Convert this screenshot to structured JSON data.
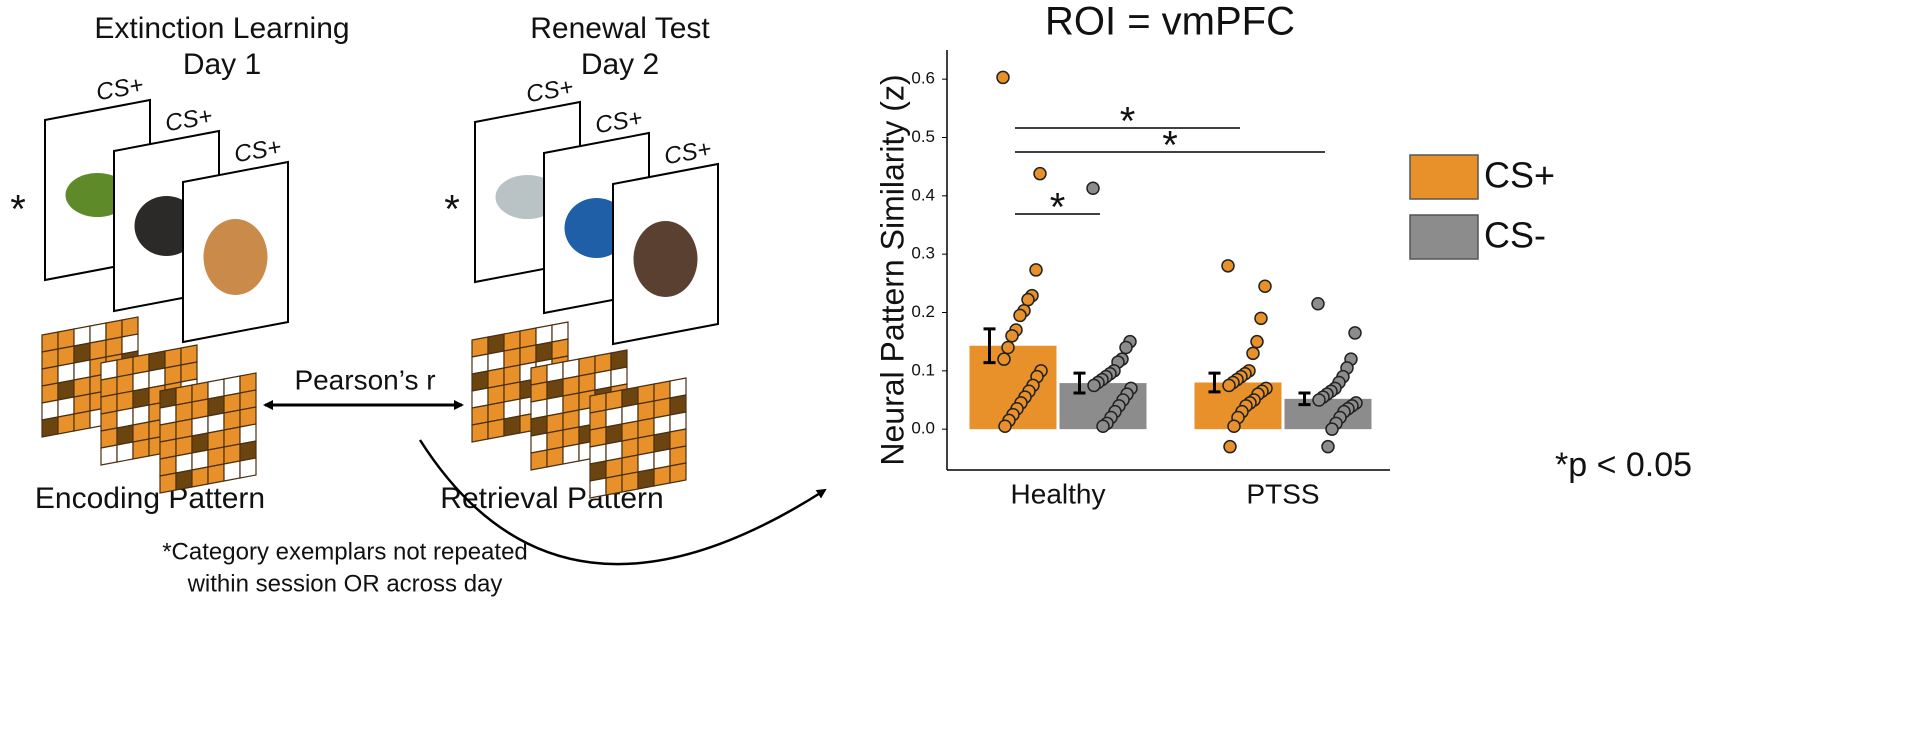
{
  "diagram": {
    "sessions": [
      {
        "title": "Extinction Learning",
        "subtitle": "Day 1",
        "marker": "*",
        "cards": [
          "CS+",
          "CS+",
          "CS+"
        ],
        "pattern_label": "Encoding Pattern"
      },
      {
        "title": "Renewal Test",
        "subtitle": "Day 2",
        "marker": "*",
        "cards": [
          "CS+",
          "CS+",
          "CS+"
        ],
        "pattern_label": "Retrieval Pattern"
      }
    ],
    "link_label": "Pearson’s r",
    "footnote": [
      "*Category exemplars not repeated",
      "within session OR across day"
    ]
  },
  "chart_data": {
    "type": "bar",
    "title": "ROI = vmPFC",
    "y_label": "Neural Pattern Similarity (z)",
    "categories": [
      "Healthy",
      "PTSS"
    ],
    "series": [
      {
        "name": "CS+",
        "color": "#e8912a",
        "values": [
          0.143,
          0.08
        ],
        "errors": [
          0.029,
          0.016
        ],
        "points": [
          [
            0.603,
            0.438,
            0.273,
            0.229,
            0.222,
            0.203,
            0.195,
            0.17,
            0.16,
            0.14,
            0.12,
            0.1,
            0.09,
            0.075,
            0.065,
            0.055,
            0.045,
            0.035,
            0.025,
            0.015,
            0.005
          ],
          [
            0.28,
            0.245,
            0.19,
            0.15,
            0.13,
            0.1,
            0.095,
            0.09,
            0.085,
            0.08,
            0.075,
            0.07,
            0.065,
            0.06,
            0.05,
            0.045,
            0.04,
            0.03,
            0.02,
            0.005,
            -0.03
          ]
        ]
      },
      {
        "name": "CS-",
        "color": "#8c8c8c",
        "values": [
          0.079,
          0.052
        ],
        "errors": [
          0.017,
          0.01
        ],
        "points": [
          [
            0.413,
            0.15,
            0.14,
            0.12,
            0.115,
            0.1,
            0.095,
            0.09,
            0.085,
            0.08,
            0.075,
            0.07,
            0.06,
            0.05,
            0.04,
            0.03,
            0.02,
            0.01,
            0.005
          ],
          [
            0.215,
            0.165,
            0.12,
            0.105,
            0.09,
            0.08,
            0.07,
            0.065,
            0.06,
            0.055,
            0.05,
            0.045,
            0.04,
            0.035,
            0.03,
            0.02,
            0.01,
            0.0,
            -0.03
          ]
        ]
      }
    ],
    "ylim": [
      -0.07,
      0.65
    ],
    "yticks": [
      {
        "value": 0,
        "label": "0.0"
      },
      0.1,
      0.2,
      0.3,
      0.4,
      0.5,
      0.6
    ],
    "annotations": [
      "*",
      "*",
      "*"
    ],
    "note": "*p < 0.05",
    "legend": "right",
    "grid": false
  }
}
